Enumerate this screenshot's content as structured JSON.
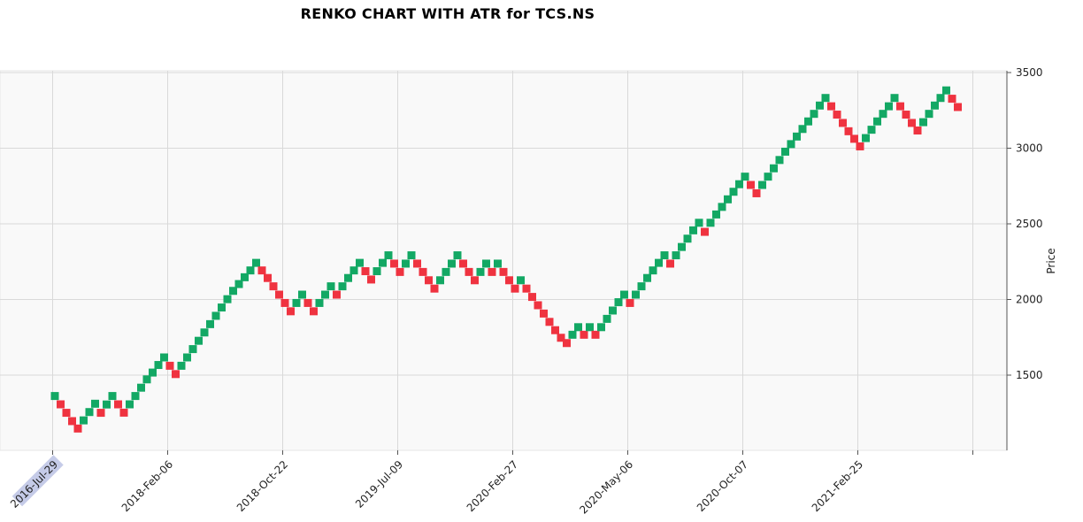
{
  "chart_data": {
    "type": "renko",
    "title": "RENKO CHART WITH ATR for TCS.NS",
    "xlabel": "",
    "ylabel": "Price",
    "x_tick_labels": [
      "2016-Jul-29",
      "2018-Feb-06",
      "2018-Oct-22",
      "2019-Jul-09",
      "2020-Feb-27",
      "2020-May-06",
      "2020-Oct-07",
      "2021-Feb-25"
    ],
    "x_tick_bricks": [
      0,
      20,
      40,
      60,
      80,
      100,
      120,
      140
    ],
    "highlighted_tick": "2016-Jul-29",
    "y_ticks": [
      1500,
      2000,
      2500,
      3000,
      3500
    ],
    "ylim": [
      1000,
      3500
    ],
    "y_axis_side": "right",
    "grid": true,
    "colors": {
      "up": "#13a864",
      "down": "#ef3340",
      "background": "#f9f9f9",
      "grid": "#d9d9d9",
      "highlight": "#c5cbe8"
    },
    "bricks": [
      {
        "d": "up",
        "v": 1362
      },
      {
        "d": "down",
        "v": 1307
      },
      {
        "d": "down",
        "v": 1251
      },
      {
        "d": "down",
        "v": 1196
      },
      {
        "d": "down",
        "v": 1147
      },
      {
        "d": "up",
        "v": 1201
      },
      {
        "d": "up",
        "v": 1256
      },
      {
        "d": "up",
        "v": 1311
      },
      {
        "d": "down",
        "v": 1251
      },
      {
        "d": "up",
        "v": 1306
      },
      {
        "d": "up",
        "v": 1362
      },
      {
        "d": "down",
        "v": 1307
      },
      {
        "d": "down",
        "v": 1252
      },
      {
        "d": "up",
        "v": 1307
      },
      {
        "d": "up",
        "v": 1362
      },
      {
        "d": "up",
        "v": 1417
      },
      {
        "d": "up",
        "v": 1472
      },
      {
        "d": "up",
        "v": 1517
      },
      {
        "d": "up",
        "v": 1567
      },
      {
        "d": "up",
        "v": 1617
      },
      {
        "d": "down",
        "v": 1562
      },
      {
        "d": "down",
        "v": 1507
      },
      {
        "d": "up",
        "v": 1562
      },
      {
        "d": "up",
        "v": 1617
      },
      {
        "d": "up",
        "v": 1672
      },
      {
        "d": "up",
        "v": 1727
      },
      {
        "d": "up",
        "v": 1782
      },
      {
        "d": "up",
        "v": 1837
      },
      {
        "d": "up",
        "v": 1892
      },
      {
        "d": "up",
        "v": 1947
      },
      {
        "d": "up",
        "v": 2002
      },
      {
        "d": "up",
        "v": 2057
      },
      {
        "d": "up",
        "v": 2102
      },
      {
        "d": "up",
        "v": 2147
      },
      {
        "d": "up",
        "v": 2192
      },
      {
        "d": "up",
        "v": 2242
      },
      {
        "d": "down",
        "v": 2192
      },
      {
        "d": "down",
        "v": 2142
      },
      {
        "d": "down",
        "v": 2087
      },
      {
        "d": "down",
        "v": 2032
      },
      {
        "d": "down",
        "v": 1977
      },
      {
        "d": "down",
        "v": 1922
      },
      {
        "d": "up",
        "v": 1977
      },
      {
        "d": "up",
        "v": 2032
      },
      {
        "d": "down",
        "v": 1977
      },
      {
        "d": "down",
        "v": 1922
      },
      {
        "d": "up",
        "v": 1977
      },
      {
        "d": "up",
        "v": 2032
      },
      {
        "d": "up",
        "v": 2087
      },
      {
        "d": "down",
        "v": 2032
      },
      {
        "d": "up",
        "v": 2087
      },
      {
        "d": "up",
        "v": 2142
      },
      {
        "d": "up",
        "v": 2192
      },
      {
        "d": "up",
        "v": 2242
      },
      {
        "d": "down",
        "v": 2187
      },
      {
        "d": "down",
        "v": 2132
      },
      {
        "d": "up",
        "v": 2187
      },
      {
        "d": "up",
        "v": 2242
      },
      {
        "d": "up",
        "v": 2292
      },
      {
        "d": "down",
        "v": 2237
      },
      {
        "d": "down",
        "v": 2182
      },
      {
        "d": "up",
        "v": 2237
      },
      {
        "d": "up",
        "v": 2292
      },
      {
        "d": "down",
        "v": 2237
      },
      {
        "d": "down",
        "v": 2182
      },
      {
        "d": "down",
        "v": 2127
      },
      {
        "d": "down",
        "v": 2072
      },
      {
        "d": "up",
        "v": 2127
      },
      {
        "d": "up",
        "v": 2182
      },
      {
        "d": "up",
        "v": 2237
      },
      {
        "d": "up",
        "v": 2292
      },
      {
        "d": "down",
        "v": 2237
      },
      {
        "d": "down",
        "v": 2182
      },
      {
        "d": "down",
        "v": 2127
      },
      {
        "d": "up",
        "v": 2182
      },
      {
        "d": "up",
        "v": 2237
      },
      {
        "d": "down",
        "v": 2182
      },
      {
        "d": "up",
        "v": 2237
      },
      {
        "d": "down",
        "v": 2182
      },
      {
        "d": "down",
        "v": 2127
      },
      {
        "d": "down",
        "v": 2072
      },
      {
        "d": "up",
        "v": 2127
      },
      {
        "d": "down",
        "v": 2072
      },
      {
        "d": "down",
        "v": 2017
      },
      {
        "d": "down",
        "v": 1962
      },
      {
        "d": "down",
        "v": 1907
      },
      {
        "d": "down",
        "v": 1852
      },
      {
        "d": "down",
        "v": 1797
      },
      {
        "d": "down",
        "v": 1747
      },
      {
        "d": "down",
        "v": 1712
      },
      {
        "d": "up",
        "v": 1767
      },
      {
        "d": "up",
        "v": 1817
      },
      {
        "d": "down",
        "v": 1767
      },
      {
        "d": "up",
        "v": 1817
      },
      {
        "d": "down",
        "v": 1767
      },
      {
        "d": "up",
        "v": 1817
      },
      {
        "d": "up",
        "v": 1872
      },
      {
        "d": "up",
        "v": 1927
      },
      {
        "d": "up",
        "v": 1982
      },
      {
        "d": "up",
        "v": 2032
      },
      {
        "d": "down",
        "v": 1977
      },
      {
        "d": "up",
        "v": 2032
      },
      {
        "d": "up",
        "v": 2087
      },
      {
        "d": "up",
        "v": 2142
      },
      {
        "d": "up",
        "v": 2192
      },
      {
        "d": "up",
        "v": 2242
      },
      {
        "d": "up",
        "v": 2292
      },
      {
        "d": "down",
        "v": 2237
      },
      {
        "d": "up",
        "v": 2292
      },
      {
        "d": "up",
        "v": 2347
      },
      {
        "d": "up",
        "v": 2402
      },
      {
        "d": "up",
        "v": 2457
      },
      {
        "d": "up",
        "v": 2507
      },
      {
        "d": "down",
        "v": 2447
      },
      {
        "d": "up",
        "v": 2507
      },
      {
        "d": "up",
        "v": 2562
      },
      {
        "d": "up",
        "v": 2612
      },
      {
        "d": "up",
        "v": 2662
      },
      {
        "d": "up",
        "v": 2712
      },
      {
        "d": "up",
        "v": 2762
      },
      {
        "d": "up",
        "v": 2812
      },
      {
        "d": "down",
        "v": 2757
      },
      {
        "d": "down",
        "v": 2702
      },
      {
        "d": "up",
        "v": 2757
      },
      {
        "d": "up",
        "v": 2812
      },
      {
        "d": "up",
        "v": 2867
      },
      {
        "d": "up",
        "v": 2922
      },
      {
        "d": "up",
        "v": 2977
      },
      {
        "d": "up",
        "v": 3027
      },
      {
        "d": "up",
        "v": 3077
      },
      {
        "d": "up",
        "v": 3127
      },
      {
        "d": "up",
        "v": 3177
      },
      {
        "d": "up",
        "v": 3227
      },
      {
        "d": "up",
        "v": 3282
      },
      {
        "d": "up",
        "v": 3332
      },
      {
        "d": "down",
        "v": 3277
      },
      {
        "d": "down",
        "v": 3222
      },
      {
        "d": "down",
        "v": 3167
      },
      {
        "d": "down",
        "v": 3112
      },
      {
        "d": "down",
        "v": 3062
      },
      {
        "d": "down",
        "v": 3012
      },
      {
        "d": "up",
        "v": 3067
      },
      {
        "d": "up",
        "v": 3122
      },
      {
        "d": "up",
        "v": 3177
      },
      {
        "d": "up",
        "v": 3227
      },
      {
        "d": "up",
        "v": 3277
      },
      {
        "d": "up",
        "v": 3332
      },
      {
        "d": "down",
        "v": 3277
      },
      {
        "d": "down",
        "v": 3222
      },
      {
        "d": "down",
        "v": 3167
      },
      {
        "d": "down",
        "v": 3117
      },
      {
        "d": "up",
        "v": 3172
      },
      {
        "d": "up",
        "v": 3227
      },
      {
        "d": "up",
        "v": 3282
      },
      {
        "d": "up",
        "v": 3332
      },
      {
        "d": "up",
        "v": 3382
      },
      {
        "d": "down",
        "v": 3327
      },
      {
        "d": "down",
        "v": 3272
      }
    ]
  }
}
